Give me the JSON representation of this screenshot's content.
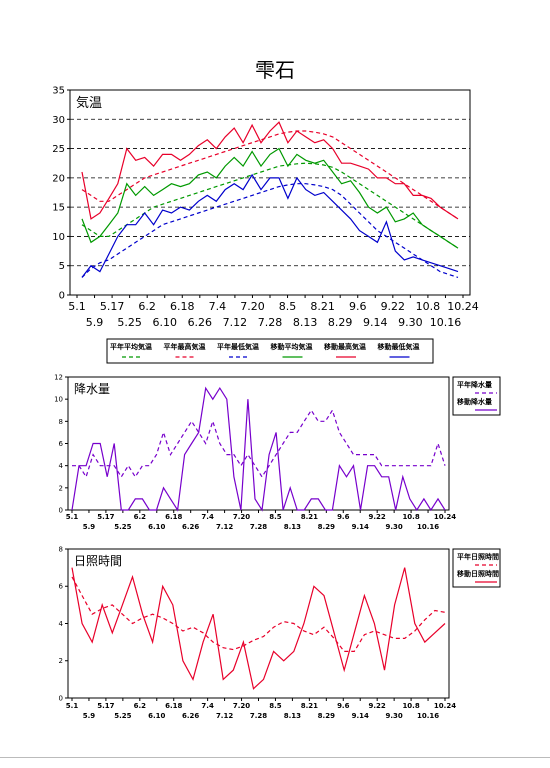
{
  "page": {
    "title": "雫石"
  },
  "chart_data": [
    {
      "type": "line",
      "title": "気温",
      "ylim": [
        0,
        35
      ],
      "yticks": [
        0,
        5,
        10,
        15,
        20,
        25,
        30,
        35
      ],
      "grid": "dashed horizontal",
      "xticks_row1": [
        "5.1",
        "5.17",
        "6.2",
        "6.18",
        "7.4",
        "7.20",
        "8.5",
        "8.21",
        "9.6",
        "9.22",
        "10.8",
        "10.24"
      ],
      "xticks_row2": [
        "5.9",
        "5.25",
        "6.10",
        "6.26",
        "7.12",
        "7.28",
        "8.13",
        "8.29",
        "9.14",
        "9.30",
        "10.16"
      ],
      "legend_position": "bottom",
      "series": [
        {
          "name": "平年平均気温",
          "color": "#009900",
          "dash": true,
          "values": [
            12.0,
            11.0,
            10.0,
            10.0,
            11.0,
            12.0,
            13.0,
            14.0,
            15.0,
            15.5,
            16.0,
            16.5,
            17.0,
            17.5,
            18.0,
            18.5,
            19.0,
            19.5,
            20.0,
            20.5,
            21.0,
            21.5,
            22.0,
            22.2,
            22.4,
            22.5,
            22.4,
            22.2,
            21.8,
            21.0,
            20.0,
            19.0,
            18.0,
            17.0,
            16.0,
            15.0,
            14.0,
            13.0,
            12.0,
            11.0,
            10.0,
            9.0,
            8.0
          ]
        },
        {
          "name": "平年最高気温",
          "color": "#e8002a",
          "dash": true,
          "values": [
            18.0,
            17.0,
            16.0,
            16.0,
            17.0,
            18.0,
            19.0,
            20.0,
            20.5,
            21.0,
            21.5,
            22.0,
            22.5,
            23.0,
            23.5,
            24.0,
            24.5,
            25.0,
            25.5,
            26.0,
            26.5,
            27.0,
            27.5,
            27.8,
            28.0,
            28.0,
            27.8,
            27.5,
            27.0,
            26.0,
            25.0,
            24.0,
            23.0,
            22.0,
            21.0,
            20.0,
            19.0,
            18.0,
            17.0,
            16.0,
            15.0,
            14.0,
            13.0
          ]
        },
        {
          "name": "平年最低気温",
          "color": "#0000cc",
          "dash": true,
          "values": [
            3.0,
            4.5,
            5.5,
            6.0,
            7.0,
            8.0,
            9.0,
            10.0,
            11.0,
            12.0,
            12.5,
            13.0,
            13.5,
            14.0,
            14.5,
            15.0,
            15.5,
            16.0,
            16.5,
            17.0,
            17.5,
            18.0,
            18.5,
            18.8,
            19.0,
            19.0,
            18.8,
            18.5,
            18.0,
            17.0,
            15.5,
            14.0,
            12.5,
            11.0,
            10.0,
            9.0,
            8.0,
            7.0,
            6.0,
            5.0,
            4.0,
            3.5,
            3.0
          ]
        },
        {
          "name": "移動平均気温",
          "color": "#009900",
          "dash": false,
          "values": [
            13.0,
            9.0,
            10.0,
            12.0,
            14.0,
            19.0,
            17.0,
            18.5,
            17.0,
            18.0,
            19.0,
            18.5,
            19.0,
            20.5,
            21.0,
            20.0,
            22.0,
            23.5,
            22.0,
            24.5,
            22.0,
            24.0,
            25.0,
            22.0,
            24.0,
            23.0,
            22.5,
            23.0,
            21.0,
            19.0,
            19.5,
            17.5,
            15.0,
            14.0,
            15.0,
            12.5,
            13.0,
            14.0,
            12.0,
            11.0,
            10.0,
            9.0,
            8.0
          ]
        },
        {
          "name": "移動最高気温",
          "color": "#e8002a",
          "dash": false,
          "values": [
            21.0,
            13.0,
            14.0,
            16.5,
            19.0,
            25.0,
            23.0,
            23.5,
            22.0,
            24.0,
            24.0,
            23.0,
            24.0,
            25.5,
            26.5,
            25.0,
            27.0,
            28.5,
            26.0,
            29.0,
            26.0,
            28.0,
            29.5,
            26.0,
            28.0,
            27.0,
            26.0,
            26.5,
            25.0,
            22.5,
            22.5,
            22.0,
            21.5,
            20.0,
            20.0,
            19.0,
            19.0,
            17.0,
            17.0,
            16.5,
            15.0,
            14.0,
            13.0
          ]
        },
        {
          "name": "移動最低気温",
          "color": "#0000cc",
          "dash": false,
          "values": [
            3.0,
            5.0,
            4.0,
            7.0,
            10.0,
            12.0,
            12.0,
            14.0,
            12.0,
            14.5,
            14.0,
            15.0,
            14.5,
            16.0,
            17.0,
            16.0,
            18.0,
            19.0,
            18.0,
            20.5,
            18.0,
            20.0,
            20.0,
            16.5,
            20.0,
            18.0,
            17.0,
            17.5,
            16.0,
            14.5,
            13.0,
            11.0,
            10.0,
            9.0,
            12.5,
            7.5,
            6.0,
            6.5,
            6.0,
            5.5,
            5.0,
            4.5,
            4.0
          ]
        }
      ]
    },
    {
      "type": "line",
      "title": "降水量",
      "ylim": [
        0,
        12
      ],
      "yticks": [
        0,
        2,
        4,
        6,
        8,
        10,
        12
      ],
      "xticks_row1": [
        "5.1",
        "5.17",
        "6.2",
        "6.18",
        "7.4",
        "7.20",
        "8.5",
        "8.21",
        "9.6",
        "9.22",
        "10.8",
        "10.24"
      ],
      "xticks_row2": [
        "5.9",
        "5.25",
        "6.10",
        "6.26",
        "7.12",
        "7.28",
        "8.13",
        "8.29",
        "9.14",
        "9.30",
        "10.16"
      ],
      "legend_position": "right",
      "series": [
        {
          "name": "平年降水量",
          "color": "#7700cc",
          "dash": true,
          "values": [
            4,
            4,
            3,
            5,
            4,
            4,
            4,
            3,
            4,
            3,
            4,
            4,
            5,
            7,
            5,
            6,
            7,
            8,
            7,
            6,
            8,
            6,
            5,
            5,
            4,
            5,
            4,
            3,
            4,
            5,
            6,
            7,
            7,
            8,
            9,
            8,
            8,
            9,
            7,
            6,
            5,
            5,
            5,
            5,
            4,
            4,
            4,
            4,
            4,
            4,
            4,
            4,
            6,
            4
          ]
        },
        {
          "name": "移動降水量",
          "color": "#7700cc",
          "dash": false,
          "values": [
            0,
            4,
            4,
            6,
            6,
            3,
            6,
            0,
            0,
            1,
            1,
            0,
            0,
            2,
            1,
            0,
            5,
            6,
            7,
            11,
            10,
            11,
            10,
            3,
            0,
            10,
            1,
            0,
            5,
            7,
            0,
            2,
            0,
            0,
            1,
            1,
            0,
            0,
            4,
            3,
            4,
            0,
            4,
            4,
            3,
            3,
            0,
            3,
            1,
            0,
            1,
            0,
            1,
            0
          ]
        }
      ]
    },
    {
      "type": "line",
      "title": "日照時間",
      "ylim": [
        0,
        8
      ],
      "yticks": [
        0,
        2,
        4,
        6,
        8
      ],
      "xticks_row1": [
        "5.1",
        "5.17",
        "6.2",
        "6.18",
        "7.4",
        "7.20",
        "8.5",
        "8.21",
        "9.6",
        "9.22",
        "10.8",
        "10.24"
      ],
      "xticks_row2": [
        "5.9",
        "5.25",
        "6.10",
        "6.26",
        "7.12",
        "7.28",
        "8.13",
        "8.29",
        "9.14",
        "9.30",
        "10.16"
      ],
      "legend_position": "right",
      "series": [
        {
          "name": "平年日照時間",
          "color": "#e8002a",
          "dash": true,
          "values": [
            6.5,
            5.5,
            4.5,
            4.8,
            5.0,
            4.5,
            4.0,
            4.3,
            4.5,
            4.3,
            4.0,
            3.6,
            3.8,
            3.5,
            3.0,
            2.7,
            2.6,
            2.8,
            3.1,
            3.3,
            3.8,
            4.1,
            4.0,
            3.6,
            3.4,
            3.8,
            3.2,
            2.5,
            2.5,
            3.4,
            3.6,
            3.4,
            3.2,
            3.2,
            3.6,
            4.2,
            4.7,
            4.6
          ]
        },
        {
          "name": "移動日照時間",
          "color": "#e8002a",
          "dash": false,
          "values": [
            7.0,
            4.0,
            3.0,
            5.0,
            3.5,
            5.0,
            6.5,
            4.5,
            3.0,
            6.0,
            5.0,
            2.0,
            1.0,
            3.0,
            4.5,
            1.0,
            1.5,
            3.0,
            0.5,
            1.0,
            2.5,
            2.0,
            2.5,
            4.0,
            6.0,
            5.5,
            3.5,
            1.5,
            3.5,
            5.5,
            4.0,
            1.5,
            5.0,
            7.0,
            4.0,
            3.0,
            3.5,
            4.0
          ]
        }
      ]
    }
  ]
}
